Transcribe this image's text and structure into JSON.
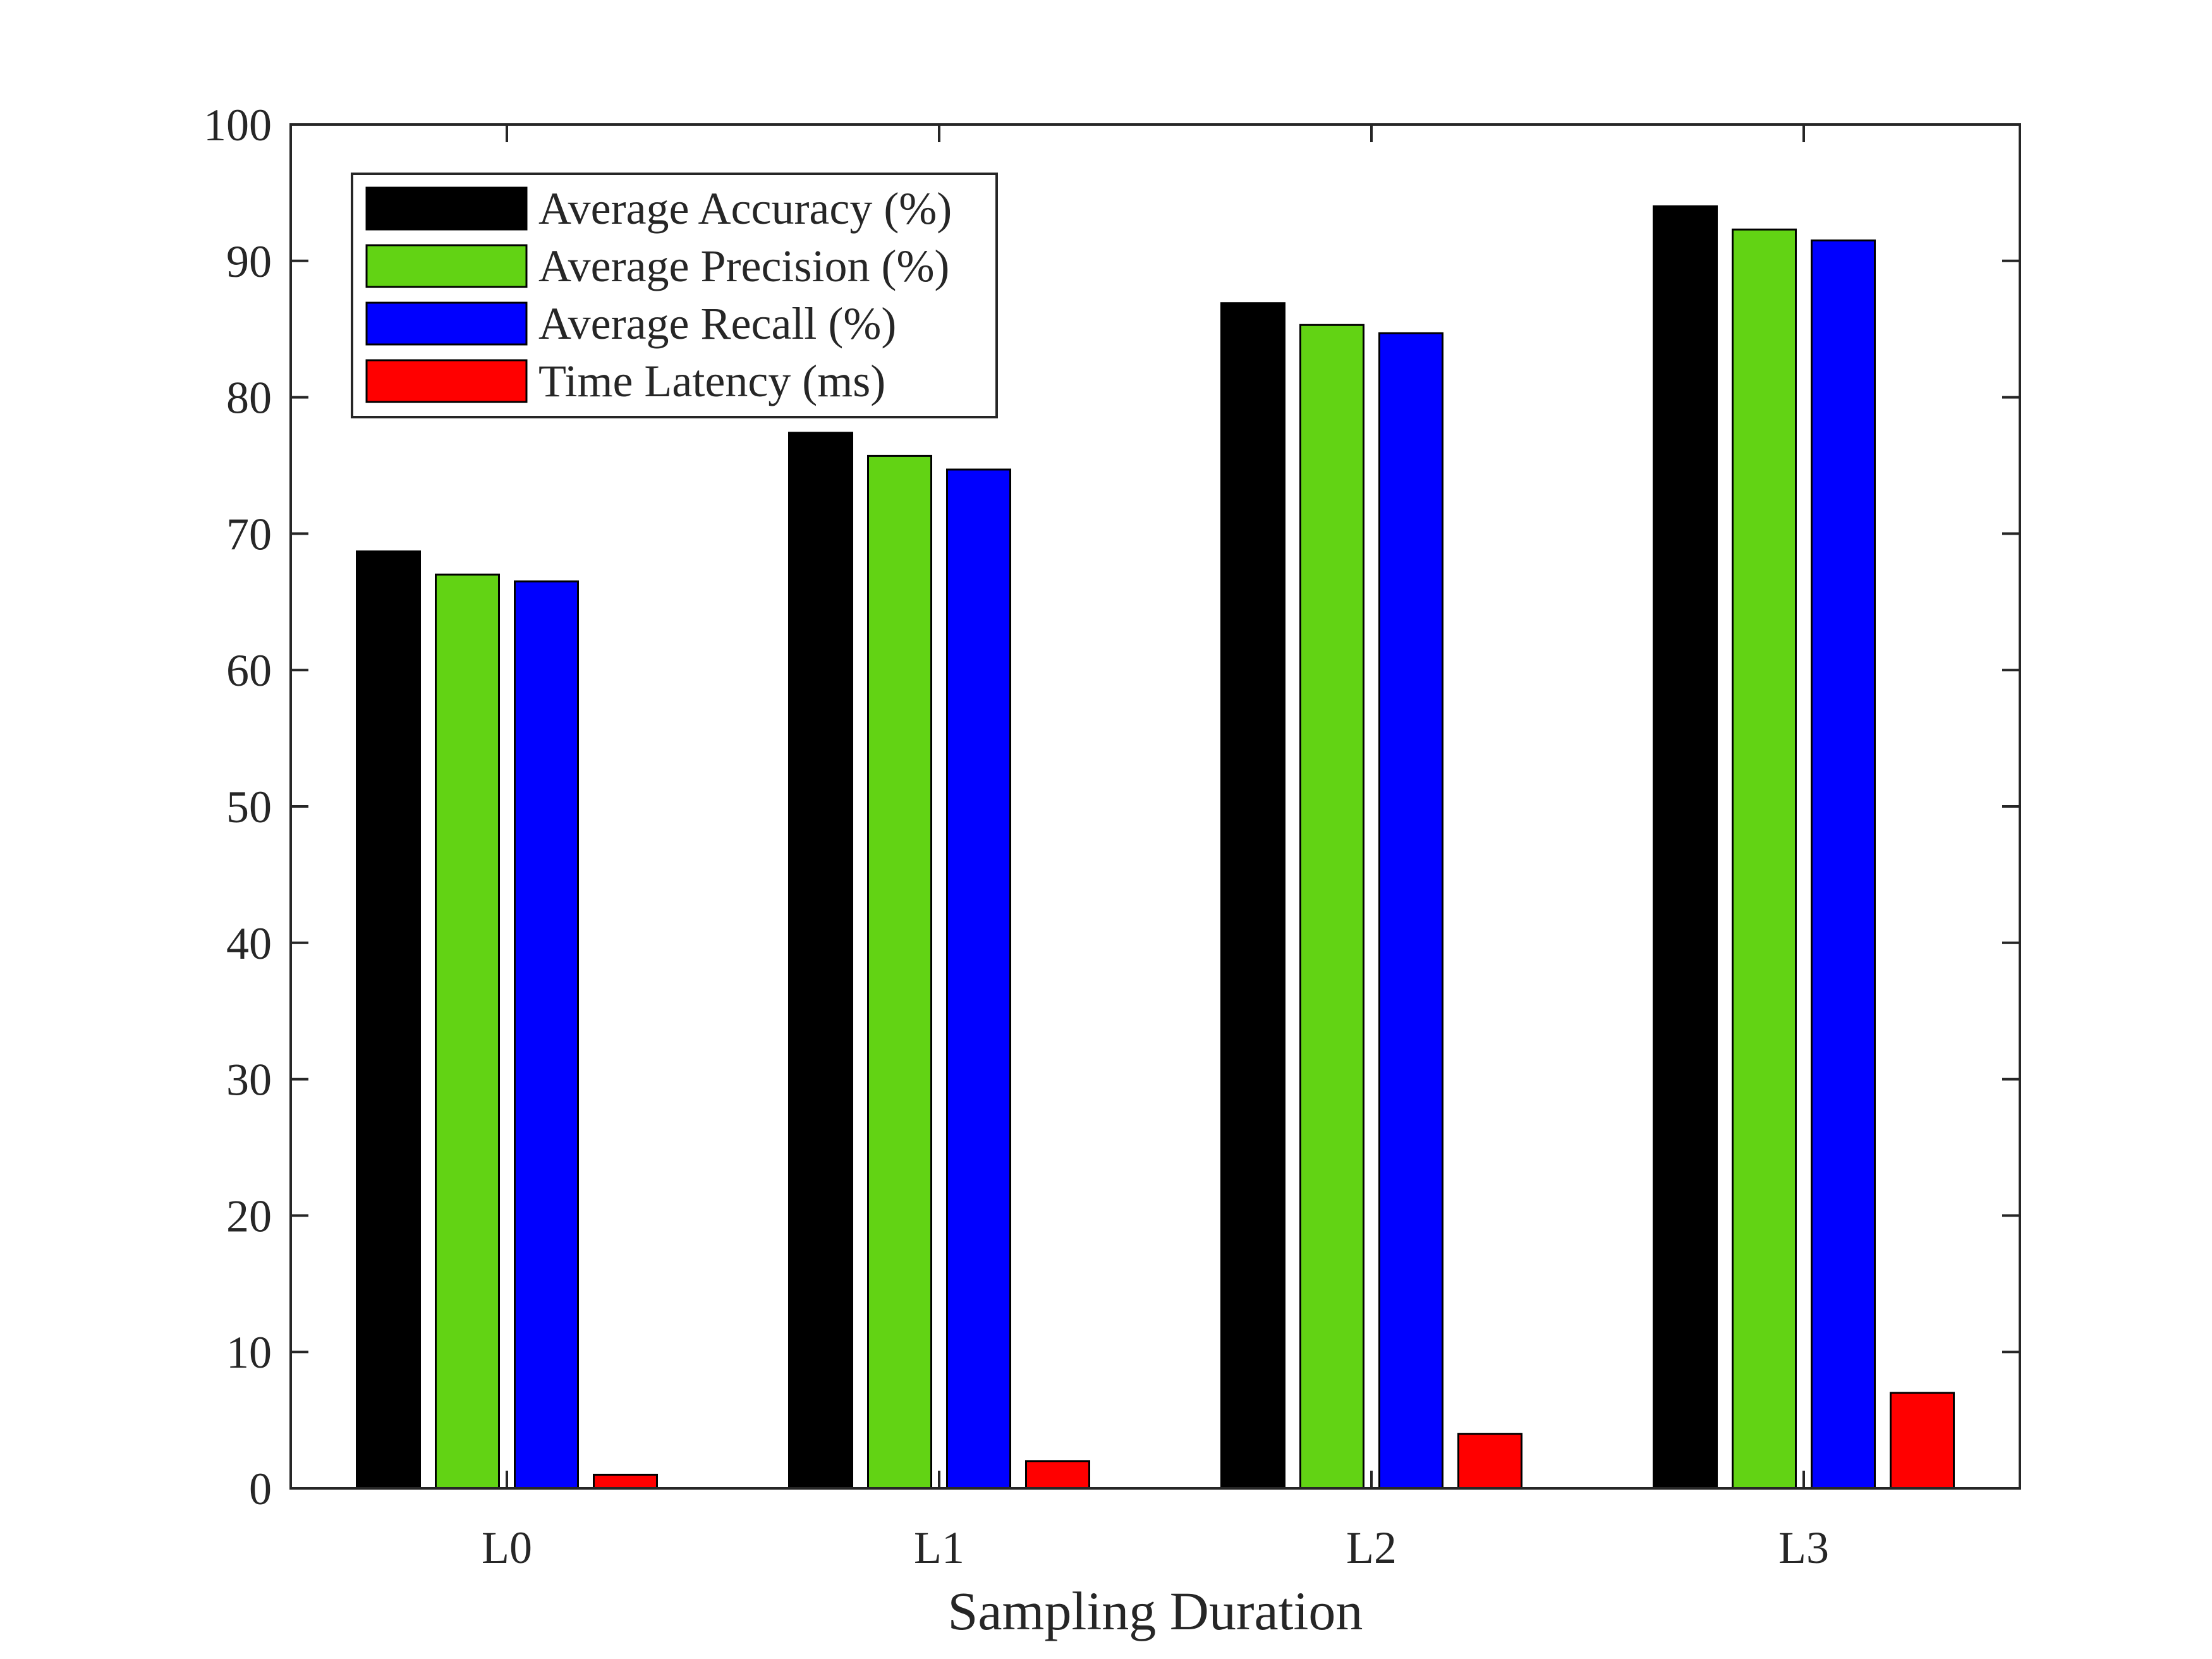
{
  "chart_data": {
    "type": "bar",
    "title": "",
    "xlabel": "Sampling Duration",
    "ylabel": "",
    "categories": [
      "L0",
      "L1",
      "L2",
      "L3"
    ],
    "ylim": [
      0,
      100
    ],
    "yticks": [
      0,
      10,
      20,
      30,
      40,
      50,
      60,
      70,
      80,
      90,
      100
    ],
    "grid": false,
    "legend_position": "top-left",
    "series": [
      {
        "name": "Average Accuracy (%)",
        "color": "#000000",
        "values": [
          68.7,
          77.4,
          86.9,
          94.0
        ]
      },
      {
        "name": "Average Precision (%)",
        "color": "#62d314",
        "values": [
          67.0,
          75.7,
          85.3,
          92.3
        ]
      },
      {
        "name": "Average Recall (%)",
        "color": "#0000ff",
        "values": [
          66.5,
          74.7,
          84.7,
          91.5
        ]
      },
      {
        "name": "Time Latency (ms)",
        "color": "#ff0000",
        "values": [
          1.0,
          2.0,
          4.0,
          7.0
        ]
      }
    ]
  }
}
